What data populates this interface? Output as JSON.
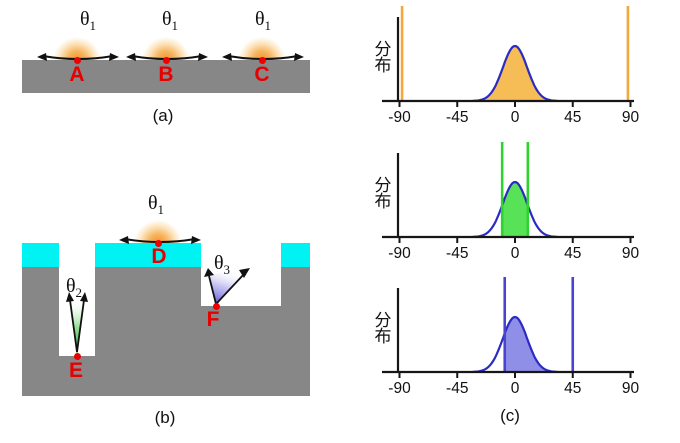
{
  "panel_a": {
    "caption": "(a)",
    "sites": [
      {
        "label": "A",
        "theta": "θ",
        "theta_sub": "1"
      },
      {
        "label": "B",
        "theta": "θ",
        "theta_sub": "1"
      },
      {
        "label": "C",
        "theta": "θ",
        "theta_sub": "1"
      }
    ]
  },
  "panel_b": {
    "caption": "(b)",
    "sites": [
      {
        "label": "D",
        "theta": "θ",
        "theta_sub": "1"
      },
      {
        "label": "E",
        "theta": "θ",
        "theta_sub": "2"
      },
      {
        "label": "F",
        "theta": "θ",
        "theta_sub": "3"
      }
    ]
  },
  "panel_c": {
    "caption": "(c)",
    "ylabel": "分布"
  },
  "colors": {
    "substrate_gray": "#878787",
    "film_cyan": "#00F2F2",
    "marker_red": "#EE0000",
    "glow_orange": "#F39221",
    "curve_blue": "#2B2BC4",
    "fill_orange": "#F6BC55",
    "line_orange": "#F2A83B",
    "fill_green": "#57E257",
    "line_green": "#2FD32F",
    "fill_violet": "#8F8FE8",
    "line_violet": "#4A43D0"
  },
  "chart_data": [
    {
      "type": "area",
      "ylabel": "分布",
      "x_ticks": [
        -90,
        -45,
        0,
        45,
        90
      ],
      "xlim": [
        -98,
        94
      ],
      "curve": {
        "shape": "gaussian",
        "center_deg": 0,
        "sigma_deg": 9.5,
        "peak_rel": 1.0
      },
      "fill_range_deg": [
        -33,
        33
      ],
      "limit_lines_deg": [
        -88,
        88
      ],
      "colors": {
        "fill": "#F6BC55",
        "curve": "#2B2BC4",
        "limit": "#F2A83B"
      }
    },
    {
      "type": "area",
      "ylabel": "分布",
      "x_ticks": [
        -90,
        -45,
        0,
        45,
        90
      ],
      "xlim": [
        -98,
        94
      ],
      "curve": {
        "shape": "gaussian",
        "center_deg": 0,
        "sigma_deg": 9.5,
        "peak_rel": 1.0
      },
      "fill_range_deg": [
        -10,
        10
      ],
      "limit_lines_deg": [
        -10,
        10
      ],
      "colors": {
        "fill": "#57E257",
        "curve": "#2B2BC4",
        "limit": "#2FD32F"
      }
    },
    {
      "type": "area",
      "ylabel": "分布",
      "x_ticks": [
        -90,
        -45,
        0,
        45,
        90
      ],
      "xlim": [
        -98,
        94
      ],
      "curve": {
        "shape": "gaussian",
        "center_deg": 0,
        "sigma_deg": 9.5,
        "peak_rel": 1.0
      },
      "fill_range_deg": [
        -8,
        33
      ],
      "limit_lines_deg": [
        -8,
        45
      ],
      "colors": {
        "fill": "#8F8FE8",
        "curve": "#2B2BC4",
        "limit": "#4A43D0"
      }
    }
  ]
}
